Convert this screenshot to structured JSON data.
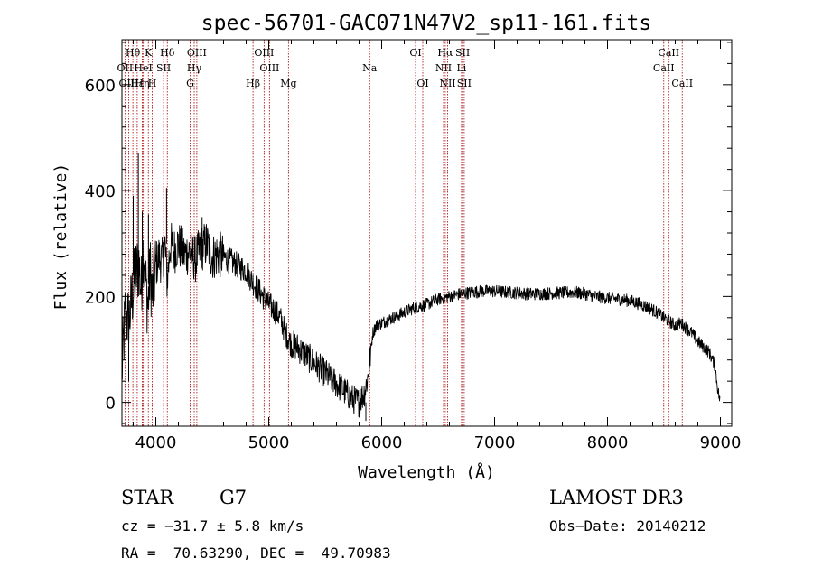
{
  "chart_data": {
    "type": "line",
    "title": "spec-56701-GAC071N47V2_sp11-161.fits",
    "xlabel": "Wavelength (Å)",
    "ylabel": "Flux (relative)",
    "xlim": [
      3700,
      9100
    ],
    "ylim": [
      -45,
      685
    ],
    "xticks": [
      4000,
      5000,
      6000,
      7000,
      8000,
      9000
    ],
    "xtick_labels": [
      "4000",
      "5000",
      "6000",
      "7000",
      "8000",
      "9000"
    ],
    "yticks": [
      0,
      200,
      400,
      600
    ],
    "ytick_labels": [
      "0",
      "200",
      "400",
      "600"
    ],
    "grid": false,
    "series": [
      {
        "name": "flux",
        "color": "#000000",
        "points": [
          [
            3700,
            60
          ],
          [
            3730,
            170
          ],
          [
            3760,
            150
          ],
          [
            3790,
            200
          ],
          [
            3820,
            240
          ],
          [
            3850,
            260
          ],
          [
            3870,
            210
          ],
          [
            3890,
            300
          ],
          [
            3910,
            225
          ],
          [
            3930,
            180
          ],
          [
            3950,
            250
          ],
          [
            3970,
            200
          ],
          [
            4000,
            260
          ],
          [
            4030,
            275
          ],
          [
            4060,
            265
          ],
          [
            4080,
            300
          ],
          [
            4100,
            230
          ],
          [
            4130,
            300
          ],
          [
            4160,
            285
          ],
          [
            4200,
            300
          ],
          [
            4250,
            280
          ],
          [
            4300,
            285
          ],
          [
            4350,
            270
          ],
          [
            4400,
            290
          ],
          [
            4450,
            300
          ],
          [
            4500,
            275
          ],
          [
            4550,
            280
          ],
          [
            4600,
            275
          ],
          [
            4650,
            268
          ],
          [
            4700,
            262
          ],
          [
            4750,
            255
          ],
          [
            4800,
            250
          ],
          [
            4850,
            230
          ],
          [
            4900,
            215
          ],
          [
            4950,
            200
          ],
          [
            5000,
            185
          ],
          [
            5050,
            175
          ],
          [
            5100,
            160
          ],
          [
            5150,
            130
          ],
          [
            5200,
            110
          ],
          [
            5250,
            105
          ],
          [
            5300,
            95
          ],
          [
            5350,
            85
          ],
          [
            5400,
            75
          ],
          [
            5450,
            65
          ],
          [
            5500,
            55
          ],
          [
            5550,
            45
          ],
          [
            5600,
            35
          ],
          [
            5650,
            25
          ],
          [
            5700,
            15
          ],
          [
            5750,
            5
          ],
          [
            5800,
            0
          ],
          [
            5850,
            20
          ],
          [
            5880,
            50
          ],
          [
            5900,
            90
          ],
          [
            5920,
            130
          ],
          [
            5950,
            145
          ],
          [
            6000,
            150
          ],
          [
            6100,
            160
          ],
          [
            6200,
            170
          ],
          [
            6300,
            180
          ],
          [
            6400,
            185
          ],
          [
            6500,
            195
          ],
          [
            6600,
            200
          ],
          [
            6700,
            205
          ],
          [
            6800,
            208
          ],
          [
            6900,
            210
          ],
          [
            7000,
            210
          ],
          [
            7100,
            208
          ],
          [
            7200,
            207
          ],
          [
            7300,
            205
          ],
          [
            7400,
            205
          ],
          [
            7500,
            206
          ],
          [
            7600,
            207
          ],
          [
            7700,
            208
          ],
          [
            7800,
            205
          ],
          [
            7900,
            200
          ],
          [
            8000,
            197
          ],
          [
            8100,
            195
          ],
          [
            8200,
            192
          ],
          [
            8300,
            185
          ],
          [
            8400,
            175
          ],
          [
            8500,
            160
          ],
          [
            8600,
            145
          ],
          [
            8650,
            150
          ],
          [
            8700,
            140
          ],
          [
            8750,
            130
          ],
          [
            8800,
            115
          ],
          [
            8850,
            105
          ],
          [
            8900,
            95
          ],
          [
            8950,
            70
          ],
          [
            8980,
            20
          ],
          [
            9000,
            0
          ]
        ]
      }
    ],
    "spike_points": [
      [
        3760,
        150,
        40
      ],
      [
        3800,
        240,
        390
      ],
      [
        3845,
        210,
        470
      ],
      [
        3880,
        220,
        360
      ],
      [
        3935,
        225,
        355
      ],
      [
        4095,
        300,
        405
      ],
      [
        4410,
        285,
        350
      ],
      [
        5860,
        0,
        -35
      ]
    ],
    "emission_lines": [
      {
        "label": "OII",
        "wavelength": 3727,
        "row": 1
      },
      {
        "label": "Hθ",
        "wavelength": 3797,
        "row": 0
      },
      {
        "label": "OIII",
        "wavelength": 3760,
        "row": 2
      },
      {
        "label": "Hε",
        "wavelength": 3835,
        "row": 2
      },
      {
        "label": "HeI",
        "wavelength": 3889,
        "row": 1
      },
      {
        "label": "K",
        "wavelength": 3934,
        "row": 0
      },
      {
        "label": "Hη",
        "wavelength": 3880,
        "row": 2
      },
      {
        "label": "H",
        "wavelength": 3968,
        "row": 2
      },
      {
        "label": "SII",
        "wavelength": 4069,
        "row": 1
      },
      {
        "label": "Hδ",
        "wavelength": 4102,
        "row": 0
      },
      {
        "label": "OIII",
        "wavelength": 4363,
        "row": 0
      },
      {
        "label": "Hγ",
        "wavelength": 4340,
        "row": 1
      },
      {
        "label": "G",
        "wavelength": 4304,
        "row": 2
      },
      {
        "label": "OIII",
        "wavelength": 4959,
        "row": 0
      },
      {
        "label": "OIII",
        "wavelength": 5007,
        "row": 1
      },
      {
        "label": "Hβ",
        "wavelength": 4861,
        "row": 2
      },
      {
        "label": "Mg",
        "wavelength": 5175,
        "row": 2
      },
      {
        "label": "Na",
        "wavelength": 5894,
        "row": 1
      },
      {
        "label": "OI",
        "wavelength": 6300,
        "row": 0
      },
      {
        "label": "OI",
        "wavelength": 6364,
        "row": 2
      },
      {
        "label": "Hα",
        "wavelength": 6563,
        "row": 0
      },
      {
        "label": "NII",
        "wavelength": 6548,
        "row": 1
      },
      {
        "label": "NII",
        "wavelength": 6584,
        "row": 2
      },
      {
        "label": "SII",
        "wavelength": 6717,
        "row": 0
      },
      {
        "label": "Li",
        "wavelength": 6707,
        "row": 1
      },
      {
        "label": "SII",
        "wavelength": 6731,
        "row": 2
      },
      {
        "label": "CaII",
        "wavelength": 8542,
        "row": 0
      },
      {
        "label": "CaII",
        "wavelength": 8498,
        "row": 1
      },
      {
        "label": "CaII",
        "wavelength": 8662,
        "row": 2
      }
    ]
  },
  "info": {
    "object_class": "STAR",
    "subclass": "G7",
    "survey": "LAMOST DR3",
    "cz": "cz = −31.7 ± 5.8 km/s",
    "obs_date": "Obs−Date: 20140212",
    "radec": "RA =  70.63290, DEC =  49.70983"
  }
}
